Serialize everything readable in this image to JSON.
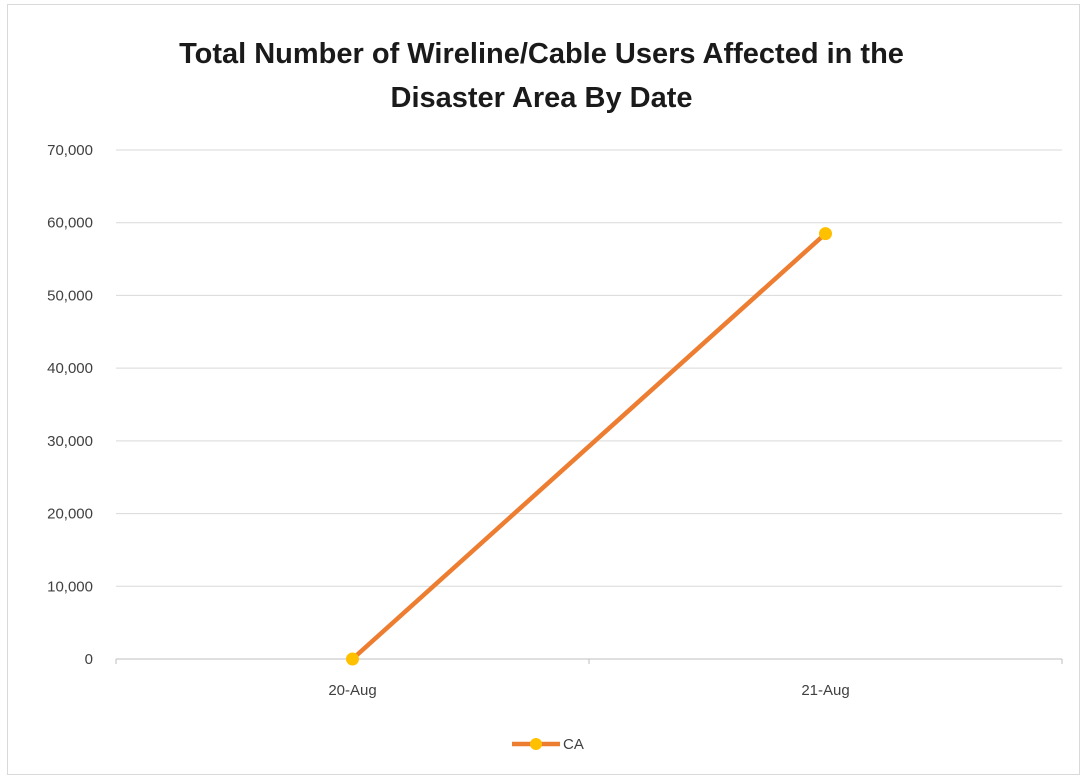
{
  "chart_data": {
    "type": "line",
    "title": "Total Number of Wireline/Cable Users Affected in the Disaster Area By Date",
    "title_lines": [
      "Total Number of Wireline/Cable Users Affected in the",
      "Disaster Area By Date"
    ],
    "categories": [
      "20-Aug",
      "21-Aug"
    ],
    "series": [
      {
        "name": "CA",
        "values": [
          0,
          58500
        ],
        "color": "#ED7D31",
        "marker_color": "#FFC000"
      }
    ],
    "ylim": [
      0,
      70000
    ],
    "yticks": [
      0,
      10000,
      20000,
      30000,
      40000,
      50000,
      60000,
      70000
    ],
    "ytick_labels": [
      "0",
      "10,000",
      "20,000",
      "30,000",
      "40,000",
      "50,000",
      "60,000",
      "70,000"
    ],
    "xlabel": "",
    "ylabel": "",
    "grid": true,
    "legend": "bottom"
  }
}
